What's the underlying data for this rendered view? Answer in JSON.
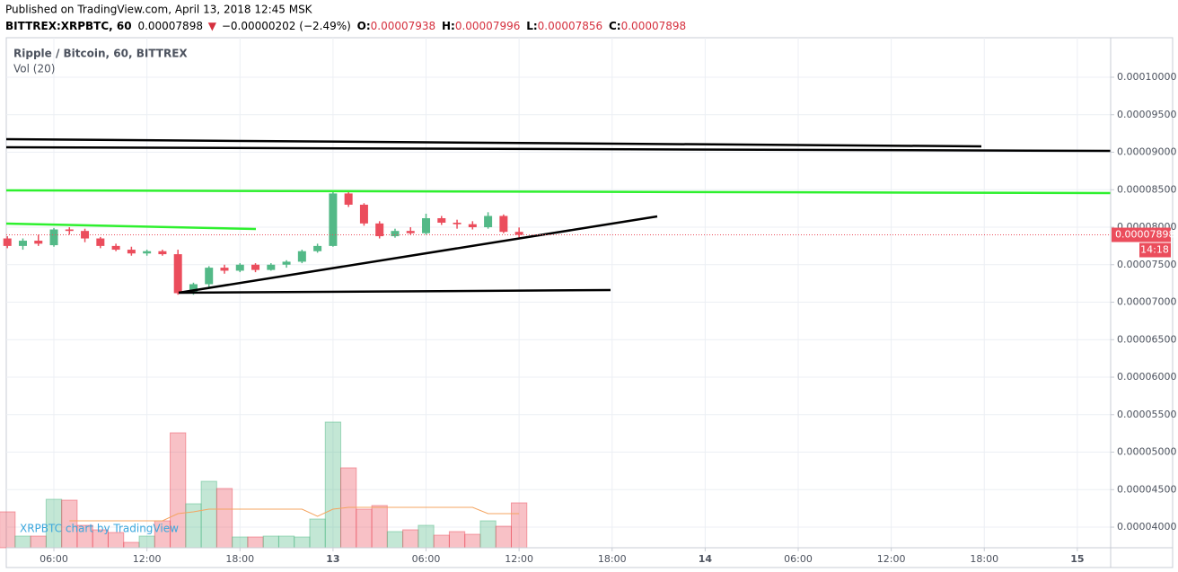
{
  "header": {
    "published": "Published on TradingView.com, April 13, 2018 12:45 MSK",
    "symbol": "BITTREX:XRPBTC, 60",
    "last": "0.00007898",
    "arrow": "▼",
    "change": "−0.00000202 (−2.49%)",
    "open_label": "O:",
    "open": "0.00007938",
    "high_label": "H:",
    "high": "0.00007996",
    "low_label": "L:",
    "low": "0.00007856",
    "close_label": "C:",
    "close": "0.00007898"
  },
  "chart_data": {
    "type": "candlestick",
    "title": "Ripple / Bitcoin, 60, BITTREX",
    "subtitle": "Vol (20)",
    "watermark": "XRPBTC chart by TradingView",
    "x": [
      3,
      4,
      5,
      6,
      7,
      8,
      9,
      10,
      11,
      12,
      13,
      14,
      15,
      16,
      17,
      18,
      19,
      20,
      21,
      22,
      23,
      24,
      25,
      26,
      27,
      28,
      29,
      30,
      31,
      32,
      33,
      34,
      35,
      36
    ],
    "open": [
      7.85e-05,
      7.75e-05,
      7.82e-05,
      7.76e-05,
      7.97e-05,
      7.95e-05,
      7.85e-05,
      7.75e-05,
      7.7e-05,
      7.65e-05,
      7.68e-05,
      7.64e-05,
      7.12e-05,
      7.24e-05,
      7.46e-05,
      7.42e-05,
      7.5e-05,
      7.43e-05,
      7.5e-05,
      7.54e-05,
      7.68e-05,
      7.75e-05,
      8.45e-05,
      8.3e-05,
      8.05e-05,
      7.88e-05,
      7.95e-05,
      7.92e-05,
      8.12e-05,
      8.06e-05,
      8.04e-05,
      8e-05,
      8.15e-05,
      7.938e-05
    ],
    "high": [
      7.88e-05,
      7.85e-05,
      7.9e-05,
      7.99e-05,
      8e-05,
      7.98e-05,
      7.87e-05,
      7.78e-05,
      7.74e-05,
      7.7e-05,
      7.7e-05,
      7.7e-05,
      7.26e-05,
      7.48e-05,
      7.5e-05,
      7.52e-05,
      7.52e-05,
      7.52e-05,
      7.56e-05,
      7.7e-05,
      7.78e-05,
      8.48e-05,
      8.47e-05,
      8.32e-05,
      8.08e-05,
      7.98e-05,
      8e-05,
      8.18e-05,
      8.15e-05,
      8.1e-05,
      8.08e-05,
      8.2e-05,
      8.17e-05,
      7.996e-05
    ],
    "low": [
      7.72e-05,
      7.7e-05,
      7.75e-05,
      7.74e-05,
      7.9e-05,
      7.8e-05,
      7.72e-05,
      7.68e-05,
      7.62e-05,
      7.62e-05,
      7.62e-05,
      7.1e-05,
      7.1e-05,
      7.2e-05,
      7.38e-05,
      7.4e-05,
      7.4e-05,
      7.42e-05,
      7.46e-05,
      7.52e-05,
      7.66e-05,
      7.74e-05,
      8.27e-05,
      8.02e-05,
      7.85e-05,
      7.86e-05,
      7.9e-05,
      7.9e-05,
      8.03e-05,
      7.98e-05,
      7.97e-05,
      7.98e-05,
      7.92e-05,
      7.856e-05
    ],
    "close": [
      7.75e-05,
      7.82e-05,
      7.78e-05,
      7.97e-05,
      7.95e-05,
      7.85e-05,
      7.75e-05,
      7.7e-05,
      7.65e-05,
      7.68e-05,
      7.64e-05,
      7.12e-05,
      7.24e-05,
      7.46e-05,
      7.42e-05,
      7.5e-05,
      7.43e-05,
      7.5e-05,
      7.54e-05,
      7.68e-05,
      7.75e-05,
      8.45e-05,
      8.3e-05,
      8.05e-05,
      7.88e-05,
      7.95e-05,
      7.92e-05,
      8.12e-05,
      8.06e-05,
      8.04e-05,
      8e-05,
      8.15e-05,
      7.938e-05,
      7.898e-05
    ],
    "volume": [
      40,
      13,
      13,
      54,
      53,
      25,
      20,
      17,
      6,
      13,
      30,
      128,
      49,
      74,
      66,
      12,
      12,
      13,
      13,
      12,
      32,
      140,
      89,
      43,
      47,
      18,
      20,
      25,
      14,
      18,
      15,
      30,
      24,
      50
    ],
    "volume_ma": [
      null,
      null,
      null,
      null,
      30,
      30,
      30,
      30,
      30,
      30,
      30,
      38,
      40,
      43,
      43,
      43,
      43,
      43,
      43,
      43,
      35,
      43,
      45,
      45,
      45,
      45,
      45,
      45,
      45,
      45,
      45,
      38,
      38,
      38
    ],
    "up_color": "#53b987",
    "down_color": "#eb4d5c",
    "ma_color": "#f4a460",
    "xlim": [
      2.93,
      74.15
    ],
    "xticks": [
      {
        "value": 6,
        "label": "06:00"
      },
      {
        "value": 12,
        "label": "12:00"
      },
      {
        "value": 18,
        "label": "18:00"
      },
      {
        "value": 24,
        "label": "13"
      },
      {
        "value": 30,
        "label": "06:00"
      },
      {
        "value": 36,
        "label": "12:00"
      },
      {
        "value": 42,
        "label": "18:00"
      },
      {
        "value": 48,
        "label": "14"
      },
      {
        "value": 54,
        "label": "06:00"
      },
      {
        "value": 60,
        "label": "12:00"
      },
      {
        "value": 66,
        "label": "18:00"
      },
      {
        "value": 72,
        "label": "15"
      }
    ],
    "ylim": [
      3.725e-05,
      0.00010527
    ],
    "yticks": [
      {
        "value": 0.0001,
        "label": "0.00010000"
      },
      {
        "value": 9.5e-05,
        "label": "0.00009500"
      },
      {
        "value": 9e-05,
        "label": "0.00009000"
      },
      {
        "value": 8.5e-05,
        "label": "0.00008500"
      },
      {
        "value": 8e-05,
        "label": "0.00008000"
      },
      {
        "value": 7.5e-05,
        "label": "0.00007500"
      },
      {
        "value": 7e-05,
        "label": "0.00007000"
      },
      {
        "value": 6.5e-05,
        "label": "0.00006500"
      },
      {
        "value": 6e-05,
        "label": "0.00006000"
      },
      {
        "value": 5.5e-05,
        "label": "0.00005500"
      },
      {
        "value": 5e-05,
        "label": "0.00005000"
      },
      {
        "value": 4.5e-05,
        "label": "0.00004500"
      },
      {
        "value": 4e-05,
        "label": "0.00004000"
      }
    ],
    "vol_lim": [
      0,
      568
    ],
    "last_price": {
      "value": 7.898e-05,
      "label": "0.00007898"
    },
    "countdown": "14:18",
    "grid": true
  }
}
